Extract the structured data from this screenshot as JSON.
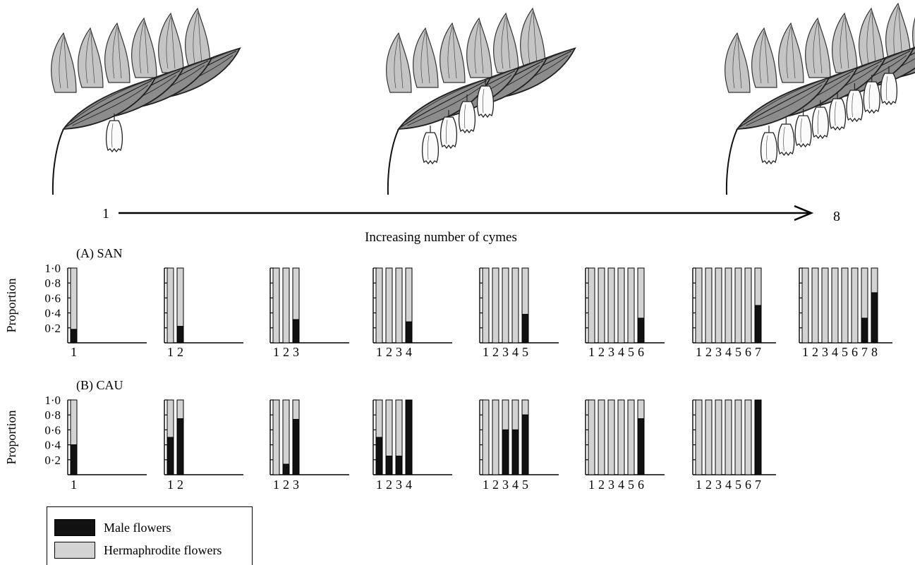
{
  "colors": {
    "male": "#111111",
    "hermaphrodite": "#d3d3d3",
    "axis": "#000000"
  },
  "illustration": {
    "icon": "solomons-seal-plant-icon",
    "arrow_start_label": "1",
    "arrow_end_label": "8",
    "arrow_caption": "Increasing number of cymes",
    "stages_flower_counts": [
      1,
      4,
      8
    ]
  },
  "legend": {
    "male_label": "Male flowers",
    "hermaphrodite_label": "Hermaphrodite flowers"
  },
  "chart_data": [
    {
      "type": "bar",
      "panel_label": "(A) SAN",
      "ylabel": "Proportion",
      "yticks": [
        "0·2",
        "0·4",
        "0·6",
        "0·8",
        "1·0"
      ],
      "ylim": [
        0,
        1.0
      ],
      "stacked": true,
      "series_names": [
        "Male flowers",
        "Hermaphrodite flowers"
      ],
      "groups": [
        {
          "categories": [
            "1"
          ],
          "male": [
            0.18
          ]
        },
        {
          "categories": [
            "1",
            "2"
          ],
          "male": [
            0,
            0.22
          ]
        },
        {
          "categories": [
            "1",
            "2",
            "3"
          ],
          "male": [
            0,
            0,
            0.31
          ]
        },
        {
          "categories": [
            "1",
            "2",
            "3",
            "4"
          ],
          "male": [
            0,
            0,
            0,
            0.28
          ]
        },
        {
          "categories": [
            "1",
            "2",
            "3",
            "4",
            "5"
          ],
          "male": [
            0,
            0,
            0,
            0,
            0.38
          ]
        },
        {
          "categories": [
            "1",
            "2",
            "3",
            "4",
            "5",
            "6"
          ],
          "male": [
            0,
            0,
            0,
            0,
            0,
            0.33
          ]
        },
        {
          "categories": [
            "1",
            "2",
            "3",
            "4",
            "5",
            "6",
            "7"
          ],
          "male": [
            0,
            0,
            0,
            0,
            0,
            0,
            0.5
          ]
        },
        {
          "categories": [
            "1",
            "2",
            "3",
            "4",
            "5",
            "6",
            "7",
            "8"
          ],
          "male": [
            0,
            0,
            0,
            0,
            0,
            0,
            0.33,
            0.67
          ]
        }
      ]
    },
    {
      "type": "bar",
      "panel_label": "(B) CAU",
      "ylabel": "Proportion",
      "yticks": [
        "0·2",
        "0·4",
        "0·6",
        "0·8",
        "1·0"
      ],
      "ylim": [
        0,
        1.0
      ],
      "stacked": true,
      "series_names": [
        "Male flowers",
        "Hermaphrodite flowers"
      ],
      "groups": [
        {
          "categories": [
            "1"
          ],
          "male": [
            0.4
          ]
        },
        {
          "categories": [
            "1",
            "2"
          ],
          "male": [
            0.5,
            0.75
          ]
        },
        {
          "categories": [
            "1",
            "2",
            "3"
          ],
          "male": [
            0,
            0.14,
            0.74
          ]
        },
        {
          "categories": [
            "1",
            "2",
            "3",
            "4"
          ],
          "male": [
            0.5,
            0.25,
            0.25,
            1.0
          ]
        },
        {
          "categories": [
            "1",
            "2",
            "3",
            "4",
            "5"
          ],
          "male": [
            0,
            0,
            0.6,
            0.6,
            0.8
          ]
        },
        {
          "categories": [
            "1",
            "2",
            "3",
            "4",
            "5",
            "6"
          ],
          "male": [
            0,
            0,
            0,
            0,
            0,
            0.75
          ]
        },
        {
          "categories": [
            "1",
            "2",
            "3",
            "4",
            "5",
            "6",
            "7"
          ],
          "male": [
            0,
            0,
            0,
            0,
            0,
            0,
            1.0
          ]
        }
      ]
    }
  ]
}
